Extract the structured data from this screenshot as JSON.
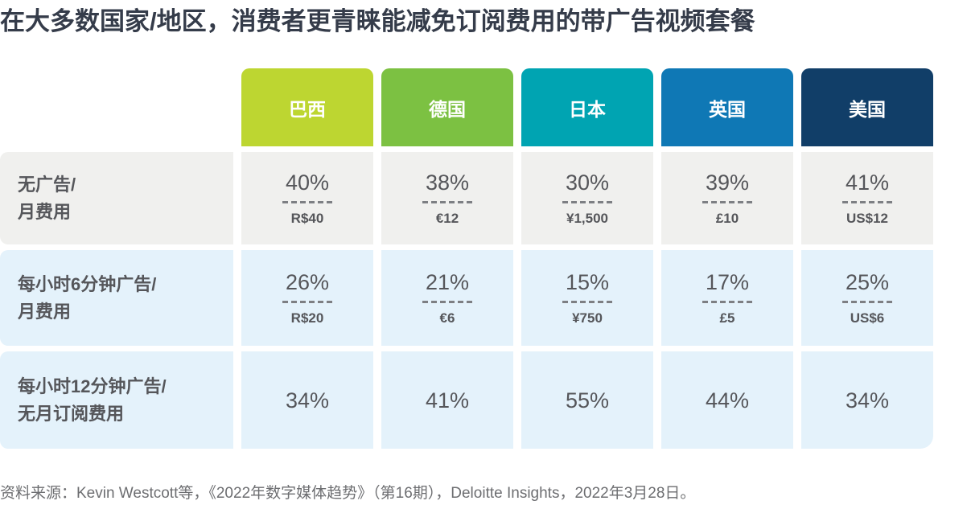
{
  "chart_data": {
    "type": "table",
    "title": "在大多数国家/地区，消费者更青睐能减免订阅费用的带广告视频套餐",
    "source": "资料来源：Kevin Westcott等，《2022年数字媒体趋势》（第16期），Deloitte Insights，2022年3月28日。",
    "legend_position": "top",
    "columns": [
      {
        "label": "巴西",
        "color": "#bdd631"
      },
      {
        "label": "德国",
        "color": "#7cc142"
      },
      {
        "label": "日本",
        "color": "#00a4b2"
      },
      {
        "label": "英国",
        "color": "#0f78b5"
      },
      {
        "label": "美国",
        "color": "#113e68"
      }
    ],
    "row_background_colors": {
      "row1": "#f0f0ee",
      "row2": "#e4f2fb",
      "row3": "#e4f2fb"
    },
    "rows": [
      {
        "label_line1": "无广告/",
        "label_line2": "月费用",
        "cells": [
          {
            "percent": "40%",
            "percent_value": 40,
            "price": "R$40"
          },
          {
            "percent": "38%",
            "percent_value": 38,
            "price": "€12"
          },
          {
            "percent": "30%",
            "percent_value": 30,
            "price": "¥1,500"
          },
          {
            "percent": "39%",
            "percent_value": 39,
            "price": "£10"
          },
          {
            "percent": "41%",
            "percent_value": 41,
            "price": "US$12"
          }
        ]
      },
      {
        "label_line1": "每小时6分钟广告/",
        "label_line2": "月费用",
        "cells": [
          {
            "percent": "26%",
            "percent_value": 26,
            "price": "R$20"
          },
          {
            "percent": "21%",
            "percent_value": 21,
            "price": "€6"
          },
          {
            "percent": "15%",
            "percent_value": 15,
            "price": "¥750"
          },
          {
            "percent": "17%",
            "percent_value": 17,
            "price": "£5"
          },
          {
            "percent": "25%",
            "percent_value": 25,
            "price": "US$6"
          }
        ]
      },
      {
        "label_line1": "每小时12分钟广告/",
        "label_line2": "无月订阅费用",
        "cells": [
          {
            "percent": "34%",
            "percent_value": 34
          },
          {
            "percent": "41%",
            "percent_value": 41
          },
          {
            "percent": "55%",
            "percent_value": 55
          },
          {
            "percent": "44%",
            "percent_value": 44
          },
          {
            "percent": "34%",
            "percent_value": 34
          }
        ]
      }
    ]
  }
}
